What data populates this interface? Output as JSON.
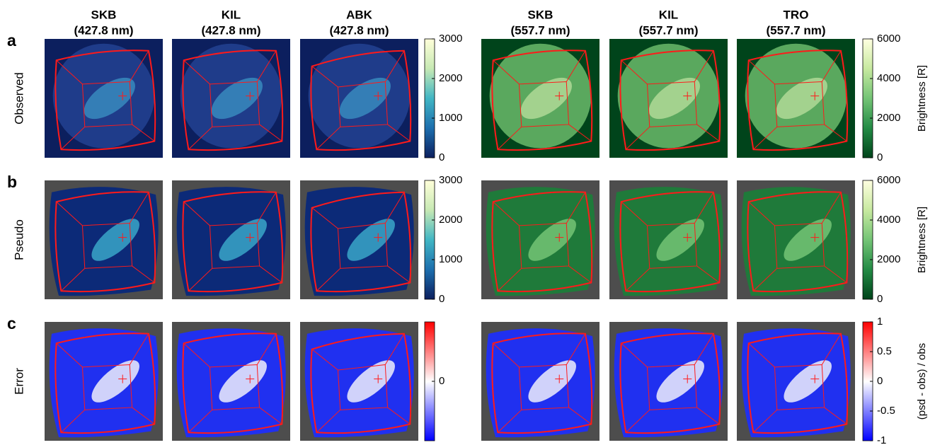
{
  "columns": [
    {
      "station": "SKB",
      "wavelength": "(427.8 nm)"
    },
    {
      "station": "KIL",
      "wavelength": "(427.8 nm)"
    },
    {
      "station": "ABK",
      "wavelength": "(427.8 nm)"
    },
    {
      "station": "SKB",
      "wavelength": "(557.7 nm)"
    },
    {
      "station": "KIL",
      "wavelength": "(557.7 nm)"
    },
    {
      "station": "TRO",
      "wavelength": "(557.7 nm)"
    }
  ],
  "rows": [
    {
      "letter": "a",
      "label": "Observed",
      "colorbars": [
        {
          "lim": [
            0,
            3000
          ],
          "ticks": [
            0,
            1000,
            2000,
            3000
          ],
          "colors": [
            "#0c1f5e",
            "#1d6fae",
            "#41b6c4",
            "#c7e9b4",
            "#ffffd9"
          ]
        },
        {
          "lim": [
            0,
            6000
          ],
          "ticks": [
            0,
            2000,
            4000,
            6000
          ],
          "label": "Brightness [R]",
          "colors": [
            "#00441b",
            "#238b45",
            "#74c476",
            "#c7e9a0",
            "#ffffe0"
          ]
        }
      ]
    },
    {
      "letter": "b",
      "label": "Pseudo",
      "colorbars": [
        {
          "lim": [
            0,
            3000
          ],
          "ticks": [
            0,
            1000,
            2000,
            3000
          ],
          "colors": [
            "#0c1f5e",
            "#1d6fae",
            "#41b6c4",
            "#c7e9b4",
            "#ffffd9"
          ]
        },
        {
          "lim": [
            0,
            6000
          ],
          "ticks": [
            0,
            2000,
            4000,
            6000
          ],
          "label": "Brightness [R]",
          "colors": [
            "#00441b",
            "#238b45",
            "#74c476",
            "#c7e9a0",
            "#ffffe0"
          ]
        }
      ]
    },
    {
      "letter": "c",
      "label": "Error",
      "colorbars": [
        {
          "lim": [
            -1,
            1
          ],
          "ticks": [
            0
          ],
          "colors": [
            "#0000ff",
            "#ffffff",
            "#ff0000"
          ]
        },
        {
          "lim": [
            -1,
            1
          ],
          "ticks": [
            -1,
            -0.5,
            0,
            0.5,
            1
          ],
          "label": "(psd - obs) / obs",
          "colors": [
            "#0000ff",
            "#ffffff",
            "#ff0000"
          ]
        }
      ]
    }
  ]
}
